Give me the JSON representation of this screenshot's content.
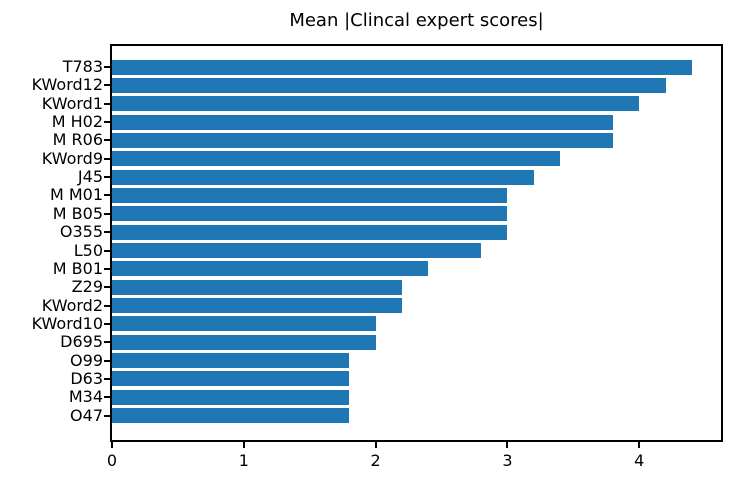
{
  "chart_data": {
    "type": "bar",
    "orientation": "horizontal",
    "title": "Mean |Clincal expert scores|",
    "categories": [
      "T783",
      "KWord12",
      "KWord1",
      "M H02",
      "M R06",
      "KWord9",
      "J45",
      "M M01",
      "M B05",
      "O355",
      "L50",
      "M B01",
      "Z29",
      "KWord2",
      "KWord10",
      "D695",
      "O99",
      "D63",
      "M34",
      "O47"
    ],
    "values": [
      4.4,
      4.2,
      4.0,
      3.8,
      3.8,
      3.4,
      3.2,
      3.0,
      3.0,
      3.0,
      2.8,
      2.4,
      2.2,
      2.2,
      2.0,
      2.0,
      1.8,
      1.8,
      1.8,
      1.8
    ],
    "xlabel": "",
    "ylabel": "",
    "xtick_labels": [
      "0",
      "1",
      "2",
      "3",
      "4"
    ],
    "xticks": [
      0,
      1,
      2,
      3,
      4
    ],
    "xlim": [
      0,
      4.62
    ],
    "grid": false,
    "legend": null,
    "bar_color": "#1f77b4",
    "text_color": "#000000",
    "spine_color": "#000000"
  }
}
